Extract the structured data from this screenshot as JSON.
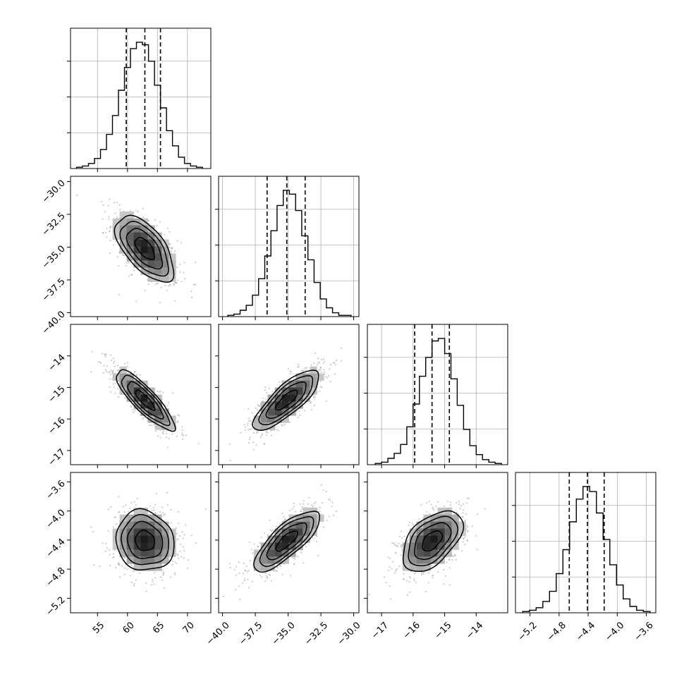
{
  "chart_data": {
    "type": "corner",
    "title": "",
    "colors": {
      "hist": "#000000",
      "scatter": "#8c8c8c",
      "grid": "#b0b0b0",
      "frame": "#000000"
    },
    "grid": true,
    "dashed_lines": "16th, 50th, 84th percentiles",
    "parameters": [
      {
        "ticks": [
          55,
          60,
          65,
          70
        ],
        "tick_labels": [
          "55",
          "60",
          "65",
          "70"
        ],
        "range": [
          50.5,
          73.9
        ],
        "percentiles": [
          59.8,
          62.9,
          65.5
        ],
        "center": 62.9,
        "sigma": 2.8
      },
      {
        "ticks": [
          -40.0,
          -37.5,
          -35.0,
          -32.5,
          -30.0
        ],
        "tick_labels": [
          "−40.0",
          "−37.5",
          "−35.0",
          "−32.5",
          "−30.0"
        ],
        "range": [
          -40.3,
          -29.6
        ],
        "percentiles": [
          -36.6,
          -35.1,
          -33.7
        ],
        "center": -35.1,
        "sigma": 1.45
      },
      {
        "ticks": [
          -17,
          -16,
          -15,
          -14
        ],
        "tick_labels": [
          "−17",
          "−16",
          "−15",
          "−14"
        ],
        "range": [
          -17.45,
          -13.0
        ],
        "percentiles": [
          -15.95,
          -15.4,
          -14.85
        ],
        "center": -15.4,
        "sigma": 0.55
      },
      {
        "ticks": [
          -5.2,
          -4.8,
          -4.4,
          -4.0,
          -3.6
        ],
        "tick_labels": [
          "−5.2",
          "−4.8",
          "−4.4",
          "−4.0",
          "−3.6"
        ],
        "range": [
          -5.4,
          -3.47
        ],
        "percentiles": [
          -4.66,
          -4.41,
          -4.18
        ],
        "center": -4.41,
        "sigma": 0.24
      }
    ],
    "correlations": [
      {
        "i": 1,
        "j": 0,
        "rho": -0.6
      },
      {
        "i": 2,
        "j": 0,
        "rho": -0.85
      },
      {
        "i": 2,
        "j": 1,
        "rho": 0.8
      },
      {
        "i": 3,
        "j": 0,
        "rho": -0.1
      },
      {
        "i": 3,
        "j": 1,
        "rho": 0.78
      },
      {
        "i": 3,
        "j": 2,
        "rho": 0.5
      }
    ],
    "histograms": [
      {
        "param": 0,
        "edges_range": [
          51.5,
          72.5
        ],
        "counts": [
          1,
          2,
          4,
          8,
          15,
          27,
          42,
          62,
          80,
          95,
          100,
          98,
          85,
          66,
          48,
          30,
          18,
          9,
          4,
          2,
          1
        ]
      },
      {
        "param": 1,
        "edges_range": [
          -39.6,
          -30.2
        ],
        "counts": [
          1,
          2,
          5,
          9,
          17,
          30,
          48,
          68,
          88,
          100,
          97,
          84,
          64,
          45,
          27,
          14,
          7,
          3,
          1,
          1
        ]
      },
      {
        "param": 2,
        "edges_range": [
          -17.2,
          -13.2
        ],
        "counts": [
          1,
          2,
          5,
          9,
          16,
          30,
          48,
          70,
          85,
          98,
          100,
          88,
          68,
          47,
          28,
          15,
          8,
          4,
          2,
          1
        ]
      },
      {
        "param": 3,
        "edges_range": [
          -5.3,
          -3.55
        ],
        "counts": [
          1,
          2,
          4,
          9,
          17,
          31,
          50,
          72,
          90,
          100,
          96,
          79,
          58,
          38,
          22,
          11,
          5,
          2,
          1
        ]
      }
    ]
  }
}
